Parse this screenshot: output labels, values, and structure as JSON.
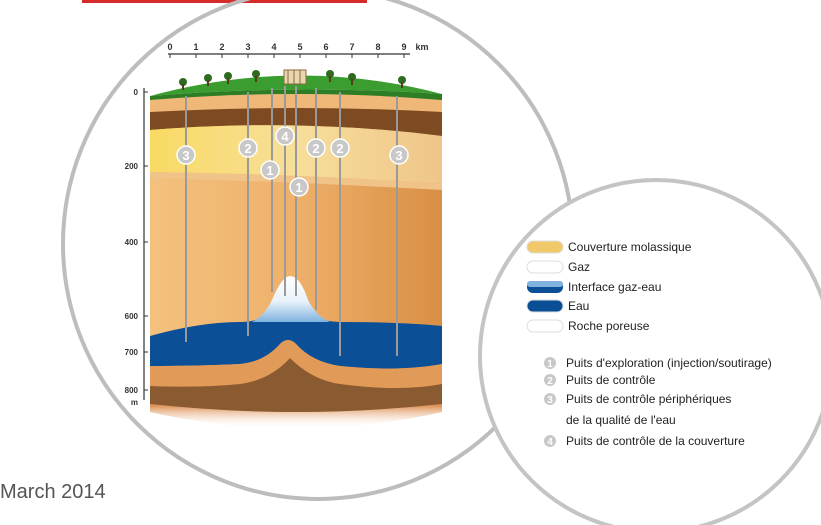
{
  "diagram": {
    "km_axis": {
      "ticks": [
        "0",
        "1",
        "2",
        "3",
        "4",
        "5",
        "6",
        "7",
        "8",
        "9"
      ],
      "unit": "km"
    },
    "depth_axis": {
      "ticks": [
        "0",
        "200",
        "400",
        "600",
        "700",
        "800"
      ],
      "unit": "m"
    },
    "wells": [
      {
        "number": "3"
      },
      {
        "number": "2"
      },
      {
        "number": "1"
      },
      {
        "number": "4"
      },
      {
        "number": "1"
      },
      {
        "number": "2"
      },
      {
        "number": "2"
      },
      {
        "number": "3"
      }
    ]
  },
  "legend": {
    "layers": [
      {
        "label": "Couverture molassique",
        "color": "#f2c96a"
      },
      {
        "label": "Gaz",
        "color": "#ffffff"
      },
      {
        "label": "Interface gaz-eau",
        "color": "#7fb2dd"
      },
      {
        "label": "Eau",
        "color": "#0a4f96"
      },
      {
        "label": "Roche poreuse",
        "color": "#ffffff"
      }
    ],
    "well_types": [
      {
        "number": "1",
        "label": "Puits d'exploration (injection/soutirage)"
      },
      {
        "number": "2",
        "label": "Puits de contrôle"
      },
      {
        "number": "3",
        "label": "Puits de contrôle périphériques",
        "label_line2": "de la qualité de l'eau"
      },
      {
        "number": "4",
        "label": "Puits de contrôle de la couverture"
      }
    ]
  },
  "footer": {
    "date_text": "March 2014"
  }
}
